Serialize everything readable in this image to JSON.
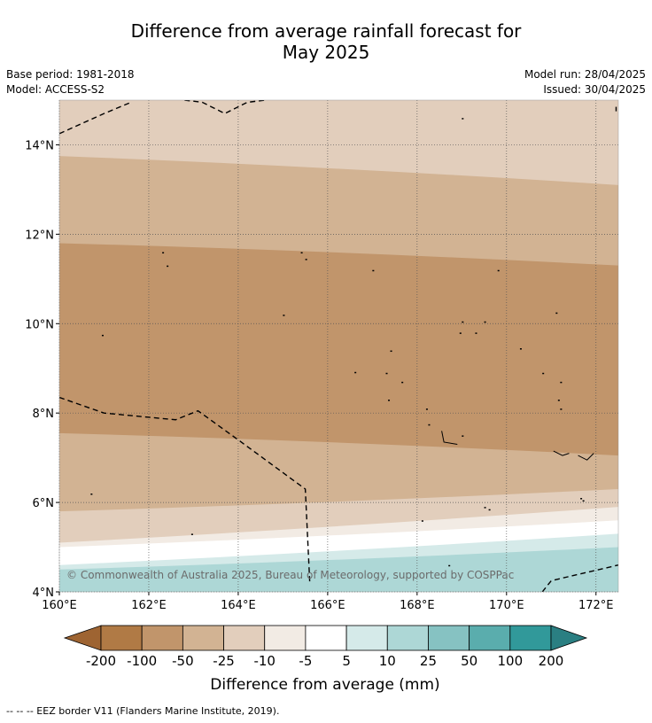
{
  "header": {
    "title_line1": "Difference from average rainfall forecast for",
    "title_line2": "May 2025",
    "base_period": "Base period: 1981-2018",
    "model": "Model: ACCESS-S2",
    "model_run": "Model run: 28/04/2025",
    "issued": "Issued: 30/04/2025"
  },
  "chart_data": {
    "type": "heatmap",
    "title": "Difference from average rainfall forecast for May 2025",
    "x_ticks": [
      "160°E",
      "162°E",
      "164°E",
      "166°E",
      "168°E",
      "170°E",
      "172°E"
    ],
    "y_ticks": [
      "4°N",
      "6°N",
      "8°N",
      "10°N",
      "12°N",
      "14°N"
    ],
    "xlim": [
      160,
      172.5
    ],
    "ylim": [
      4,
      15
    ],
    "grid": true,
    "colorbar": {
      "label": "Difference from average (mm)",
      "boundaries": [
        "-200",
        "-100",
        "-50",
        "-25",
        "-10",
        "-5",
        "5",
        "10",
        "25",
        "50",
        "100",
        "200"
      ],
      "colors": [
        "#9e6432",
        "#b07a45",
        "#c1956b",
        "#d2b393",
        "#e2cebc",
        "#f2ebe4",
        "#ffffff",
        "#d5eae9",
        "#add7d6",
        "#86c2c2",
        "#5aadad",
        "#31999a",
        "#2a7f82"
      ]
    },
    "bands_from_north": [
      {
        "range": "-25 to -10",
        "color": "#e2cebc",
        "lat_south_west": 13.75,
        "lat_south_east": 13.1
      },
      {
        "range": "-50 to -25",
        "color": "#d2b393",
        "lat_south_west": 11.8,
        "lat_south_east": 11.3
      },
      {
        "range": "-100 to -50",
        "color": "#c1956b",
        "lat_south_west": 7.55,
        "lat_south_east": 7.05
      },
      {
        "range": "-50 to -25",
        "color": "#d2b393",
        "lat_south_west": 5.8,
        "lat_south_east": 6.3
      },
      {
        "range": "-25 to -10",
        "color": "#e2cebc",
        "lat_south_west": 5.1,
        "lat_south_east": 5.9
      },
      {
        "range": "-10 to -5",
        "color": "#f2ebe4",
        "lat_south_west": 5.0,
        "lat_south_east": 5.6
      },
      {
        "range": "-5 to 5",
        "color": "#ffffff",
        "lat_south_west": 4.6,
        "lat_south_east": 5.3
      },
      {
        "range": "5 to 10",
        "color": "#d5eae9",
        "lat_south_west": 4.5,
        "lat_south_east": 5.0
      },
      {
        "range": "10 to 25",
        "color": "#add7d6",
        "lat_south_west": 4.0,
        "lat_south_east": 4.0
      }
    ],
    "copyright": "© Commonwealth of Australia 2025, Bureau of Meteorology, supported by COSPPac",
    "legend_note": "-- -- -- EEZ border V11 (Flanders Marine Institute, 2019)."
  }
}
